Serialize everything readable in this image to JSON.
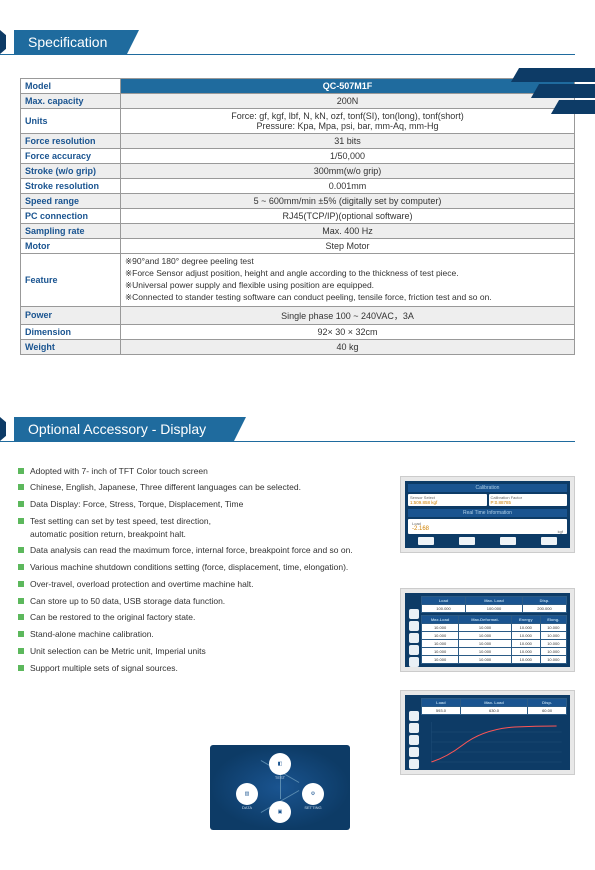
{
  "sec1_title": "Specification",
  "sec2_title": "Optional Accessory - Display",
  "spec_table": {
    "model_label": "Model",
    "model_value": "QC-507M1F",
    "rows": [
      {
        "label": "Max. capacity",
        "value": "200N"
      },
      {
        "label": "Units",
        "value": "Force: gf, kgf, lbf, N, kN, ozf, tonf(SI), ton(long), tonf(short)\nPressure: Kpa, Mpa, psi, bar, mm-Aq, mm-Hg"
      },
      {
        "label": "Force resolution",
        "value": "31 bits"
      },
      {
        "label": "Force accuracy",
        "value": "1/50,000"
      },
      {
        "label": "Stroke (w/o grip)",
        "value": "300mm(w/o grip)"
      },
      {
        "label": "Stroke resolution",
        "value": "0.001mm"
      },
      {
        "label": "Speed range",
        "value": "5 ~ 600mm/min ±5%   (digitally set by computer)"
      },
      {
        "label": "PC connection",
        "value": "RJ45(TCP/IP)(optional software)"
      },
      {
        "label": "Sampling rate",
        "value": "Max. 400 Hz"
      },
      {
        "label": "Motor",
        "value": "Step Motor"
      }
    ],
    "feature_label": "Feature",
    "feature_lines": [
      "※90°and 180° degree peeling test",
      "※Force Sensor adjust position, height and angle according to the thickness of test piece.",
      "※Universal power supply and flexible using position are equipped.",
      "※Connected to stander testing software can conduct peeling, tensile force, friction test and so on."
    ],
    "after_rows": [
      {
        "label": "Power",
        "value": "Single phase 100 ~ 240VAC，3A"
      },
      {
        "label": "Dimension",
        "value": "92× 30 × 32cm"
      },
      {
        "label": "Weight",
        "value": "40 kg"
      }
    ]
  },
  "bullets": [
    "Adopted with 7- inch of TFT Color touch screen",
    "Chinese, English, Japanese, Three different languages can be selected.",
    "Data Display: Force, Stress, Torque, Displacement, Time",
    "Test setting can set by test speed, test direction,\nautomatic position return, breakpoint halt.",
    "Data analysis can read the maximum force, internal force, breakpoint force and so on.",
    "Various machine shutdown conditions setting (force, displacement, time, elongation).",
    "Over-travel, overload protection and overtime machine halt.",
    "Can store up to 50 data, USB storage data function.",
    "Can be restored to the original factory state.",
    "Stand-alone machine calibration.",
    "Unit selection can be Metric unit, Imperial units",
    "Support multiple sets of signal sources."
  ],
  "disp1": {
    "title1": "Calibration",
    "sensor_lbl": "Sensor Select",
    "sensor_val": "1:509.858 kgf",
    "cal_lbl": "Calibration Factor",
    "cal_val": "P:0.88785",
    "title2": "Real Time Information",
    "load_lbl": "Load",
    "load_val": "-2.168",
    "unit": "kgf"
  },
  "disp2": {
    "headers": [
      "Load",
      "Max. Load",
      "Disp."
    ],
    "top": [
      "100.000",
      "100.000",
      "200.000"
    ],
    "sub_headers": [
      "Max.Load",
      "Max.Deformat.",
      "Energy",
      "Elong."
    ],
    "rows": [
      [
        "10.000",
        "10.000",
        "10.000",
        "10.000"
      ],
      [
        "10.000",
        "10.000",
        "10.000",
        "10.000"
      ],
      [
        "10.000",
        "10.000",
        "10.000",
        "10.000"
      ],
      [
        "10.000",
        "10.000",
        "10.000",
        "10.000"
      ],
      [
        "10.000",
        "10.000",
        "10.000",
        "10.000"
      ]
    ]
  },
  "disp3": {
    "headers": [
      "Load",
      "Max. Load",
      "Disp."
    ],
    "values": [
      "593.0",
      "630.0",
      "60.00"
    ]
  },
  "icon_labels": [
    "TEST",
    "DATA",
    "SETTING",
    ""
  ]
}
